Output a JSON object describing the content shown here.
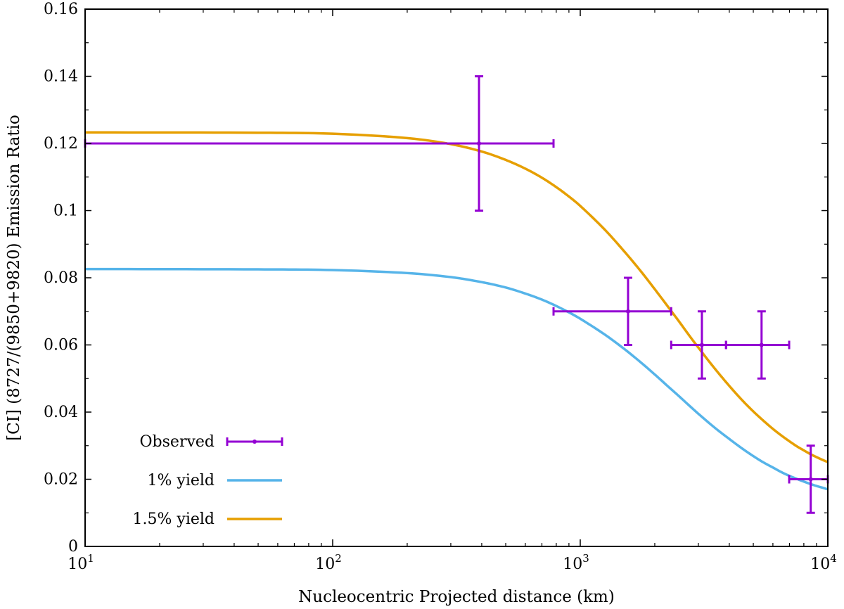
{
  "chart_data": {
    "type": "line",
    "title": "",
    "xlabel": "Nucleocentric Projected distance (km)",
    "ylabel": "[CI] (8727/(9850+9820) Emission Ratio",
    "xscale": "log",
    "xlim": [
      10,
      10000
    ],
    "ylim": [
      0,
      0.16
    ],
    "x_ticks": [
      {
        "value": 10,
        "base": "10",
        "exp": "1"
      },
      {
        "value": 100,
        "base": "10",
        "exp": "2"
      },
      {
        "value": 1000,
        "base": "10",
        "exp": "3"
      },
      {
        "value": 10000,
        "base": "10",
        "exp": "4"
      }
    ],
    "y_ticks": [
      {
        "value": 0,
        "label": "0"
      },
      {
        "value": 0.02,
        "label": "0.02"
      },
      {
        "value": 0.04,
        "label": "0.04"
      },
      {
        "value": 0.06,
        "label": "0.06"
      },
      {
        "value": 0.08,
        "label": "0.08"
      },
      {
        "value": 0.1,
        "label": "0.1"
      },
      {
        "value": 0.12,
        "label": "0.12"
      },
      {
        "value": 0.14,
        "label": "0.14"
      },
      {
        "value": 0.16,
        "label": "0.16"
      }
    ],
    "grid": false,
    "legend_position": "bottom-left",
    "colors": {
      "observed": "#9400d3",
      "yield_1": "#56b4e9",
      "yield_15": "#e69f00"
    },
    "series": [
      {
        "name": "Observed",
        "kind": "errorbar",
        "color": "#9400d3",
        "points": [
          {
            "x": 390,
            "y": 0.12,
            "xmin": 10,
            "xmax": 780,
            "ymin": 0.1,
            "ymax": 0.14
          },
          {
            "x": 1560,
            "y": 0.07,
            "xmin": 780,
            "xmax": 2330,
            "ymin": 0.06,
            "ymax": 0.08
          },
          {
            "x": 3100,
            "y": 0.06,
            "xmin": 2330,
            "xmax": 3880,
            "ymin": 0.05,
            "ymax": 0.07
          },
          {
            "x": 5400,
            "y": 0.06,
            "xmin": 3880,
            "xmax": 6980,
            "ymin": 0.05,
            "ymax": 0.07
          },
          {
            "x": 8530,
            "y": 0.02,
            "xmin": 6980,
            "xmax": 10000,
            "ymin": 0.01,
            "ymax": 0.03
          }
        ]
      },
      {
        "name": "1% yield",
        "kind": "line",
        "color": "#56b4e9",
        "x": [
          10,
          50,
          100,
          200,
          300,
          400,
          500,
          600,
          700,
          800,
          900,
          1000,
          1250,
          1500,
          1750,
          2000,
          2250,
          2500,
          2750,
          3000,
          3500,
          4000,
          4500,
          5000,
          5500,
          6000,
          6500,
          7000,
          7500,
          8000,
          8500,
          9000,
          9500,
          10000
        ],
        "y": [
          0.0826,
          0.0825,
          0.0823,
          0.0814,
          0.0802,
          0.0787,
          0.0771,
          0.0753,
          0.0735,
          0.0716,
          0.0697,
          0.0678,
          0.0632,
          0.0589,
          0.0549,
          0.0512,
          0.0478,
          0.0448,
          0.042,
          0.0395,
          0.0353,
          0.032,
          0.0292,
          0.0269,
          0.025,
          0.0235,
          0.0221,
          0.021,
          0.0201,
          0.0193,
          0.0186,
          0.018,
          0.0175,
          0.017
        ]
      },
      {
        "name": "1.5% yield",
        "kind": "line",
        "color": "#e69f00",
        "x": [
          10,
          50,
          100,
          200,
          300,
          400,
          500,
          600,
          700,
          800,
          900,
          1000,
          1250,
          1500,
          1750,
          2000,
          2250,
          2500,
          2750,
          3000,
          3500,
          4000,
          4500,
          5000,
          5500,
          6000,
          6500,
          7000,
          7500,
          8000,
          8500,
          9000,
          9500,
          10000
        ],
        "y": [
          0.1233,
          0.1232,
          0.1229,
          0.1216,
          0.1198,
          0.1176,
          0.1151,
          0.1125,
          0.1098,
          0.107,
          0.1042,
          0.1014,
          0.0945,
          0.088,
          0.0821,
          0.0766,
          0.0716,
          0.0671,
          0.0629,
          0.0592,
          0.0529,
          0.0478,
          0.0436,
          0.0402,
          0.0374,
          0.035,
          0.033,
          0.0313,
          0.0298,
          0.0286,
          0.0275,
          0.0266,
          0.0258,
          0.0251
        ]
      }
    ]
  }
}
